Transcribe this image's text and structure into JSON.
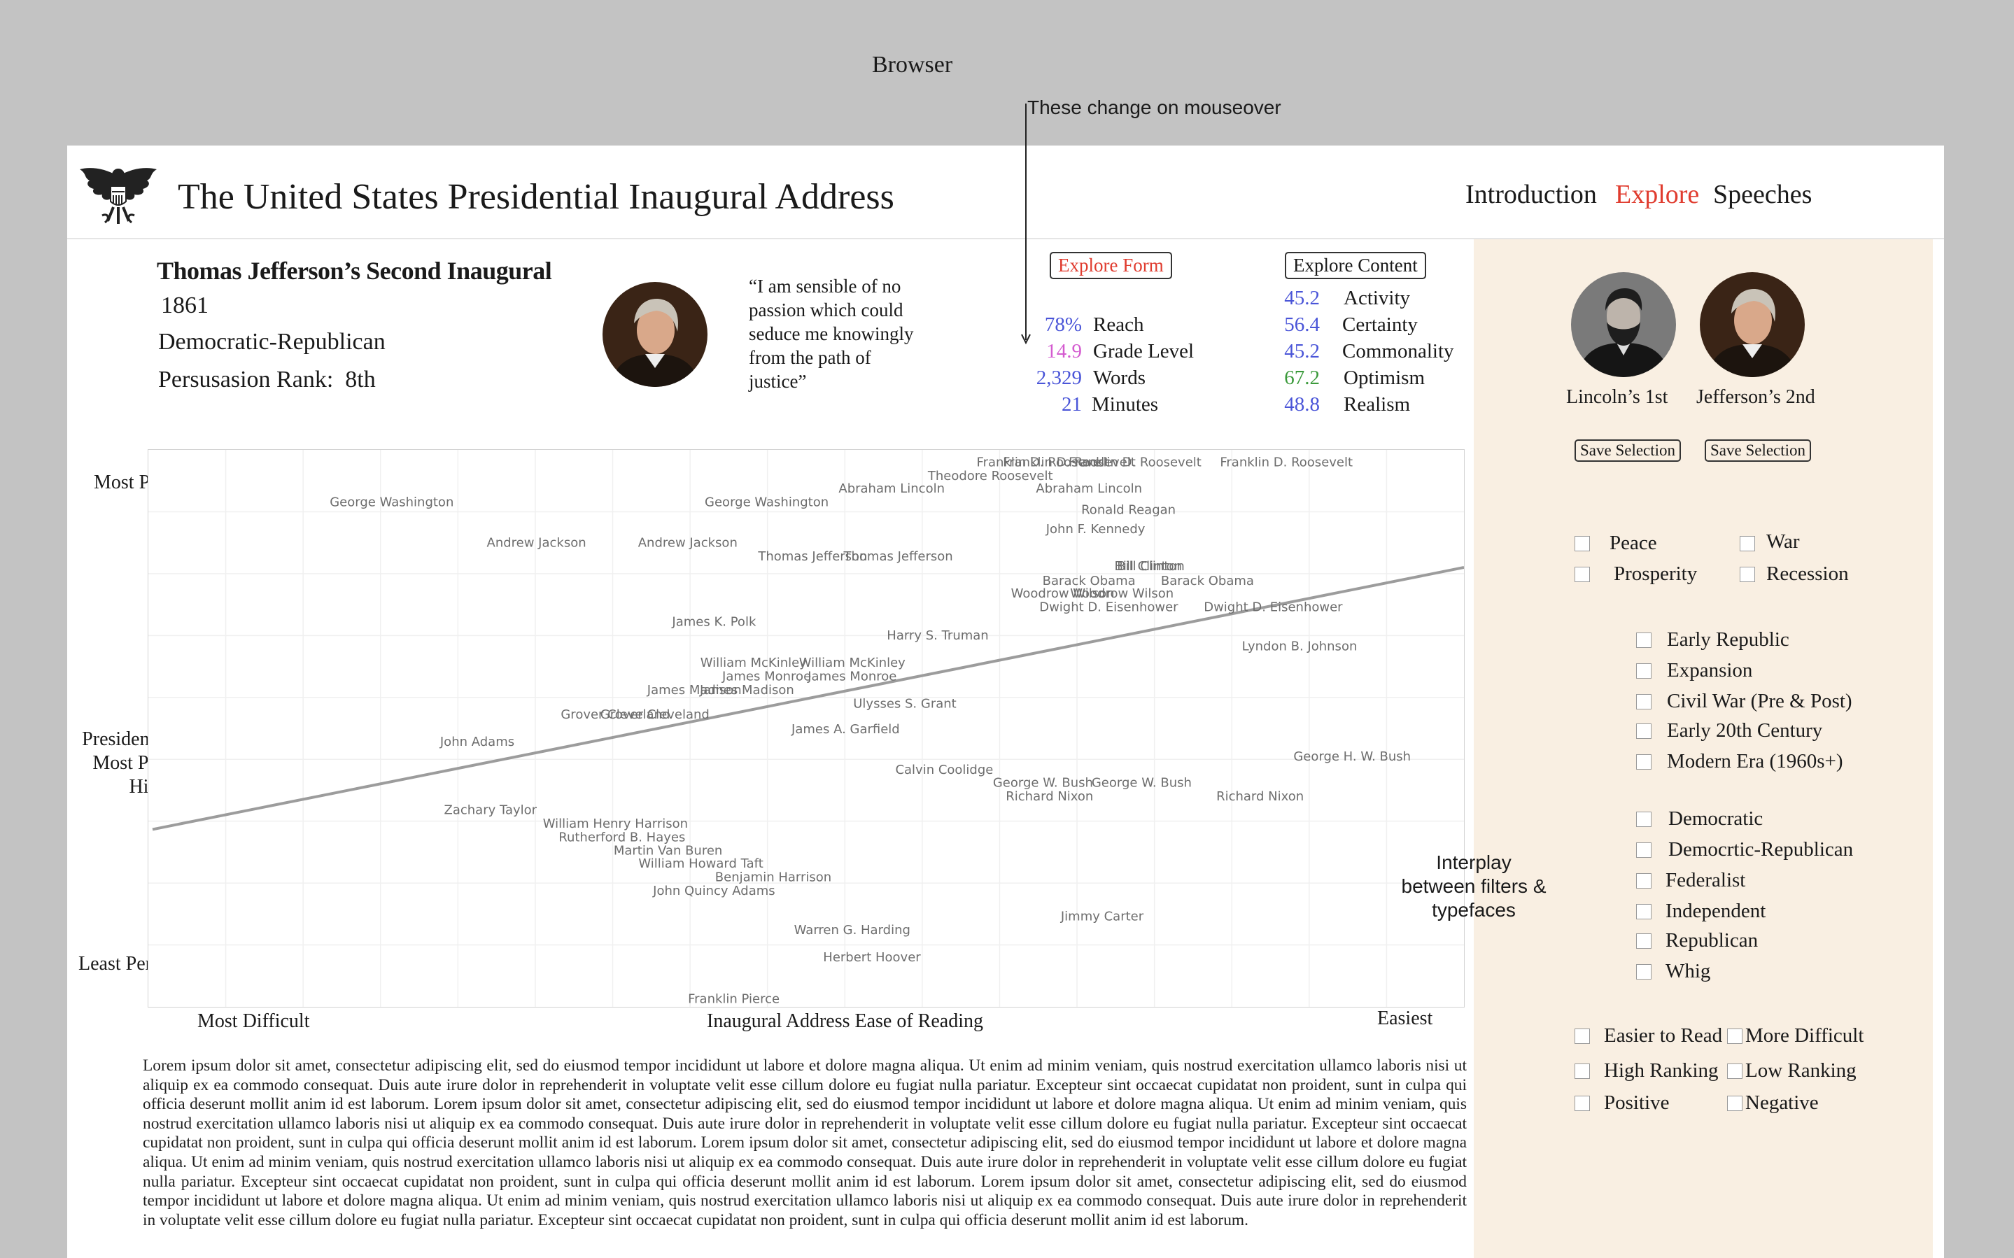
{
  "annotations": {
    "browser_label": "Browser",
    "mouseover_note": "These change on mouseover",
    "interplay_note_lines": [
      "Interplay",
      "between filters &",
      "typefaces"
    ]
  },
  "header": {
    "title": "The United States Presidential Inaugural Address",
    "logo_icon": "eagle-seal-icon",
    "nav": [
      {
        "label": "Introduction",
        "active": false
      },
      {
        "label": "Explore",
        "active": true
      },
      {
        "label": "Speeches",
        "active": false
      }
    ],
    "active_color": "#e03c2f"
  },
  "speech": {
    "title": "Thomas Jefferson’s Second Inaugural",
    "year": "1861",
    "party": "Democratic-Republican",
    "rank_label": "Persusasion Rank:",
    "rank_value": "8th",
    "portrait_icon": "jefferson-portrait-icon",
    "quote_lines": [
      "“I am sensible of no",
      "passion which could",
      "seduce me knowingly",
      "from the path of",
      "justice”"
    ]
  },
  "explore_form": {
    "label": "Explore Form",
    "metrics": [
      {
        "value": "78%",
        "label": "Reach",
        "color": "#4a55d8"
      },
      {
        "value": "14.9",
        "label": "Grade Level",
        "color": "#d45bd0"
      },
      {
        "value": "2,329",
        "label": "Words",
        "color": "#4a55d8"
      },
      {
        "value": "21",
        "label": "Minutes",
        "color": "#4a55d8"
      }
    ]
  },
  "explore_content": {
    "label": "Explore Content",
    "metrics": [
      {
        "value": "45.2",
        "label": "Activity",
        "color": "#4a55d8"
      },
      {
        "value": "56.4",
        "label": "Certainty",
        "color": "#4a55d8"
      },
      {
        "value": "45.2",
        "label": "Commonality",
        "color": "#4a55d8"
      },
      {
        "value": "67.2",
        "label": "Optimism",
        "color": "#3b9a3b"
      },
      {
        "value": "48.8",
        "label": "Realism",
        "color": "#4a55d8"
      }
    ]
  },
  "chart_data": {
    "type": "scatter",
    "xlabel": "Inaugural Address Ease of Reading",
    "x_left_label": "Most Difficult",
    "x_right_label": "Easiest",
    "ylabel_lines": [
      "Presidents Considered",
      "Most Persuasive by",
      "Historians"
    ],
    "y_top_label": "Most Persuasive",
    "y_bottom_label": "Least Persuasive",
    "xlim": [
      0,
      100
    ],
    "ylim": [
      0,
      100
    ],
    "grid": true,
    "trendline": [
      [
        0,
        32
      ],
      [
        100,
        80
      ]
    ],
    "points": [
      {
        "name": "George Washington",
        "x": 18.5,
        "y": 91.2
      },
      {
        "name": "George Washington",
        "x": 47.0,
        "y": 91.2
      },
      {
        "name": "Abraham Lincoln",
        "x": 56.5,
        "y": 93.7
      },
      {
        "name": "Franklin D. Roosevelt",
        "x": 68.0,
        "y": 98.5
      },
      {
        "name": "Franklin D. Roosevelt",
        "x": 70.0,
        "y": 98.5
      },
      {
        "name": "Franklin D. Roosevelt",
        "x": 75.0,
        "y": 98.5
      },
      {
        "name": "Franklin D. Roosevelt",
        "x": 86.5,
        "y": 98.5
      },
      {
        "name": "Theodore Roosevelt",
        "x": 64.0,
        "y": 96.0
      },
      {
        "name": "Abraham Lincoln",
        "x": 71.5,
        "y": 93.7
      },
      {
        "name": "Ronald Reagan",
        "x": 74.5,
        "y": 89.8
      },
      {
        "name": "John F. Kennedy",
        "x": 72.0,
        "y": 86.3
      },
      {
        "name": "Andrew Jackson",
        "x": 29.5,
        "y": 83.8
      },
      {
        "name": "Andrew Jackson",
        "x": 41.0,
        "y": 83.8
      },
      {
        "name": "Thomas Jefferson",
        "x": 50.5,
        "y": 81.3
      },
      {
        "name": "Thomas Jefferson",
        "x": 57.0,
        "y": 81.3
      },
      {
        "name": "Bill Clinton",
        "x": 76.0,
        "y": 79.5
      },
      {
        "name": "Bill Clinton",
        "x": 76.2,
        "y": 79.5
      },
      {
        "name": "Barack Obama",
        "x": 71.5,
        "y": 76.8
      },
      {
        "name": "Barack Obama",
        "x": 80.5,
        "y": 76.8
      },
      {
        "name": "Woodrow Wilson",
        "x": 69.5,
        "y": 74.5
      },
      {
        "name": "Woodrow Wilson",
        "x": 74.0,
        "y": 74.5
      },
      {
        "name": "Dwight D. Eisenhower",
        "x": 73.0,
        "y": 72.0
      },
      {
        "name": "Dwight D. Eisenhower",
        "x": 85.5,
        "y": 72.0
      },
      {
        "name": "James K. Polk",
        "x": 43.0,
        "y": 69.3
      },
      {
        "name": "Harry S. Truman",
        "x": 60.0,
        "y": 66.8
      },
      {
        "name": "Lyndon B. Johnson",
        "x": 87.5,
        "y": 64.8
      },
      {
        "name": "William McKinley",
        "x": 46.0,
        "y": 61.8
      },
      {
        "name": "William McKinley",
        "x": 53.5,
        "y": 61.8
      },
      {
        "name": "James Monroe",
        "x": 47.0,
        "y": 59.3
      },
      {
        "name": "James Monroe",
        "x": 53.5,
        "y": 59.3
      },
      {
        "name": "James Madison",
        "x": 41.5,
        "y": 56.8
      },
      {
        "name": "James Madison",
        "x": 45.5,
        "y": 56.8
      },
      {
        "name": "Ulysses S. Grant",
        "x": 57.5,
        "y": 54.3
      },
      {
        "name": "Grover Cleveland",
        "x": 35.5,
        "y": 52.3
      },
      {
        "name": "Grover Cleveland",
        "x": 38.5,
        "y": 52.3
      },
      {
        "name": "James A. Garfield",
        "x": 53.0,
        "y": 49.6
      },
      {
        "name": "John Adams",
        "x": 25.0,
        "y": 47.3
      },
      {
        "name": "George H. W. Bush",
        "x": 91.5,
        "y": 44.6
      },
      {
        "name": "Calvin Coolidge",
        "x": 60.5,
        "y": 42.2
      },
      {
        "name": "George W. Bush",
        "x": 68.0,
        "y": 39.8
      },
      {
        "name": "George W. Bush",
        "x": 75.5,
        "y": 39.8
      },
      {
        "name": "Richard Nixon",
        "x": 68.5,
        "y": 37.3
      },
      {
        "name": "Richard Nixon",
        "x": 84.5,
        "y": 37.3
      },
      {
        "name": "Zachary Taylor",
        "x": 26.0,
        "y": 34.8
      },
      {
        "name": "William Henry Harrison",
        "x": 35.5,
        "y": 32.3
      },
      {
        "name": "Rutherford B. Hayes",
        "x": 36.0,
        "y": 29.8
      },
      {
        "name": "Martin Van Buren",
        "x": 39.5,
        "y": 27.4
      },
      {
        "name": "William Howard Taft",
        "x": 42.0,
        "y": 25.0
      },
      {
        "name": "Benjamin Harrison",
        "x": 47.5,
        "y": 22.5
      },
      {
        "name": "John Quincy Adams",
        "x": 43.0,
        "y": 20.0
      },
      {
        "name": "Warren G. Harding",
        "x": 53.5,
        "y": 12.8
      },
      {
        "name": "Jimmy Carter",
        "x": 72.5,
        "y": 15.3
      },
      {
        "name": "Herbert Hoover",
        "x": 55.0,
        "y": 7.8
      },
      {
        "name": "Franklin Pierce",
        "x": 44.5,
        "y": 0.2
      }
    ]
  },
  "sidebar": {
    "comparisons": [
      {
        "label": "Lincoln’s 1st",
        "portrait_icon": "lincoln-portrait-icon",
        "button": "Save Selection"
      },
      {
        "label": "Jefferson’s 2nd",
        "portrait_icon": "jefferson-portrait-icon",
        "button": "Save Selection"
      }
    ],
    "themes": [
      "Peace",
      "War",
      "Prosperity",
      "Recession"
    ],
    "eras": [
      "Early Republic",
      "Expansion",
      "Civil War (Pre & Post)",
      "Early 20th Century",
      "Modern Era (1960s+)"
    ],
    "parties": [
      "Democratic",
      "Democrtic-Republican",
      "Federalist",
      "Independent",
      "Republican",
      "Whig"
    ],
    "sorts": [
      "Easier to Read",
      "More Difficult",
      "High Ranking",
      "Low Ranking",
      "Positive",
      "Negative"
    ]
  },
  "body_text": "Lorem ipsum dolor sit amet, consectetur adipiscing elit, sed do eiusmod tempor incididunt ut labore et dolore magna aliqua. Ut enim ad minim veniam, quis nostrud exercitation ullamco laboris nisi ut aliquip ex ea commodo consequat. Duis aute irure dolor in reprehenderit in voluptate velit esse cillum dolore eu fugiat nulla pariatur. Excepteur sint occaecat cupidatat non proident, sunt in culpa qui officia deserunt mollit anim id est laborum.  Lorem ipsum dolor sit amet, consectetur adipiscing elit, sed do eiusmod tempor incididunt ut labore et dolore magna aliqua. Ut enim ad minim veniam, quis nostrud exercitation ullamco laboris nisi ut aliquip ex ea commodo consequat. Duis aute irure dolor in reprehenderit in voluptate velit esse cillum dolore eu fugiat nulla pariatur. Excepteur sint occaecat cupidatat non proident, sunt in culpa qui officia deserunt mollit anim id est laborum.  Lorem ipsum dolor sit amet, consectetur adipiscing elit, sed do eiusmod tempor incididunt ut labore et dolore magna aliqua. Ut enim ad minim veniam, quis nostrud exercitation ullamco laboris nisi ut aliquip ex ea commodo consequat. Duis aute irure dolor in reprehenderit in voluptate velit esse cillum dolore eu fugiat nulla pariatur. Excepteur sint occaecat cupidatat non proident, sunt in culpa qui officia deserunt mollit anim id est laborum.  Lorem ipsum dolor sit amet, consectetur adipiscing elit, sed do eiusmod tempor incididunt ut labore et dolore magna aliqua. Ut enim ad minim veniam, quis nostrud exercitation ullamco laboris nisi ut aliquip ex ea commodo consequat. Duis aute irure dolor in reprehenderit in voluptate velit esse cillum dolore eu fugiat nulla pariatur. Excepteur sint occaecat cupidatat non proident, sunt in culpa qui officia deserunt mollit anim id est laborum."
}
